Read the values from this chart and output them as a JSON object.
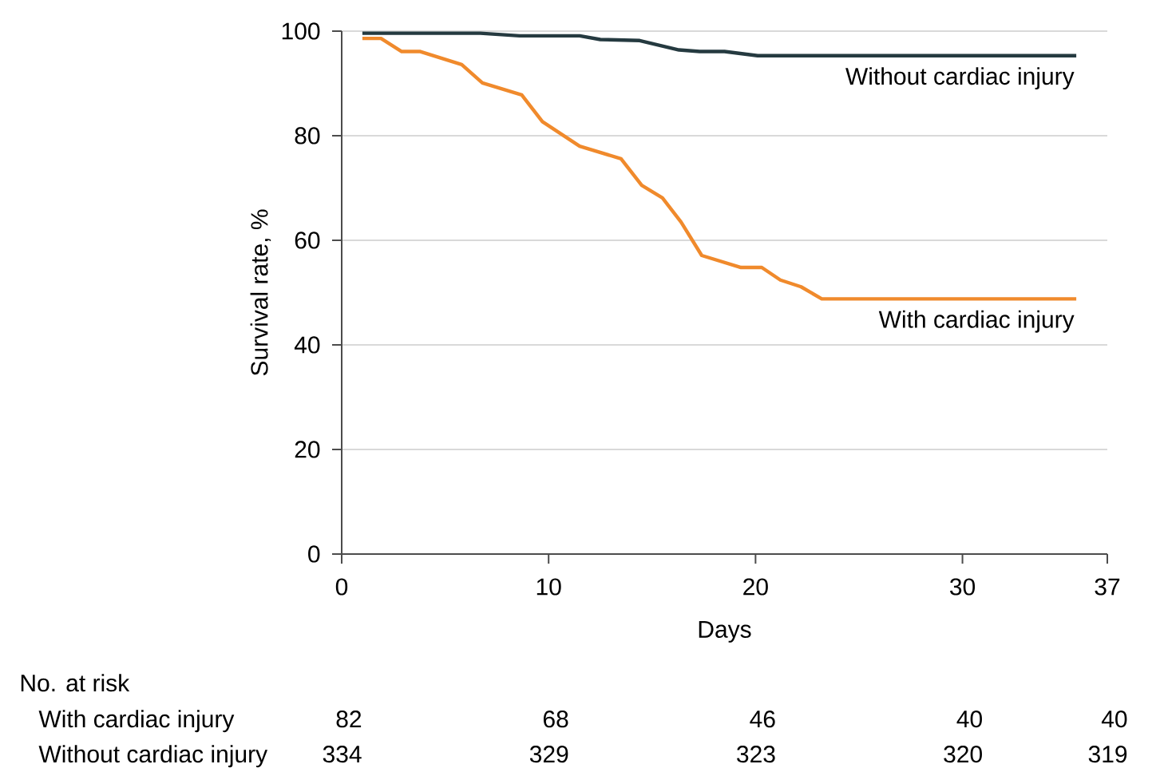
{
  "chart_data": {
    "type": "line",
    "xlabel": "Days",
    "ylabel": "Survival rate, %",
    "xlim": [
      0,
      37
    ],
    "xticks": [
      0,
      10,
      20,
      30,
      37
    ],
    "ylim": [
      0,
      100
    ],
    "yticks": [
      0,
      20,
      40,
      60,
      80,
      100
    ],
    "grid": "y",
    "legend": false,
    "series": [
      {
        "name": "Without cardiac injury",
        "color": "#253a40",
        "x": [
          1.0,
          6.7,
          8.6,
          11.5,
          12.5,
          14.4,
          16.3,
          17.3,
          18.5,
          20.1,
          35.5
        ],
        "values": [
          99.6,
          99.6,
          99.1,
          99.1,
          98.4,
          98.2,
          96.4,
          96.1,
          96.1,
          95.3,
          95.3
        ]
      },
      {
        "name": "With cardiac injury",
        "color": "#f08a2c",
        "x": [
          1.0,
          1.9,
          2.9,
          3.8,
          5.8,
          6.8,
          8.7,
          9.7,
          11.5,
          13.5,
          14.5,
          15.5,
          16.4,
          17.4,
          19.3,
          20.3,
          21.2,
          22.2,
          23.2,
          35.5
        ],
        "values": [
          98.6,
          98.6,
          96.1,
          96.1,
          93.6,
          90.1,
          87.8,
          82.7,
          78.0,
          75.6,
          70.5,
          68.1,
          63.5,
          57.1,
          54.8,
          54.8,
          52.4,
          51.1,
          48.8,
          48.8
        ]
      }
    ],
    "annotations": [
      "No. at risk",
      "With cardiac injury",
      "82",
      "68",
      "46",
      "40",
      "40",
      "Without cardiac injury",
      "334",
      "329",
      "323",
      "320",
      "319"
    ]
  }
}
